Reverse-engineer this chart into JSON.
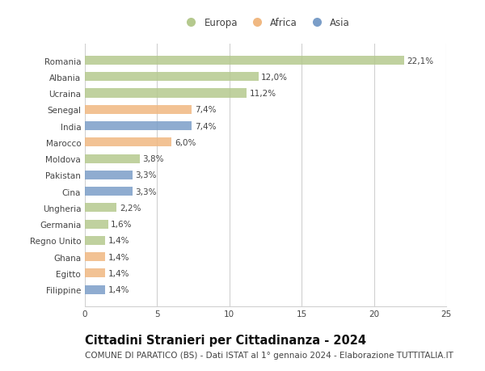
{
  "categories": [
    "Romania",
    "Albania",
    "Ucraina",
    "Senegal",
    "India",
    "Marocco",
    "Moldova",
    "Pakistan",
    "Cina",
    "Ungheria",
    "Germania",
    "Regno Unito",
    "Ghana",
    "Egitto",
    "Filippine"
  ],
  "values": [
    22.1,
    12.0,
    11.2,
    7.4,
    7.4,
    6.0,
    3.8,
    3.3,
    3.3,
    2.2,
    1.6,
    1.4,
    1.4,
    1.4,
    1.4
  ],
  "labels": [
    "22,1%",
    "12,0%",
    "11,2%",
    "7,4%",
    "7,4%",
    "6,0%",
    "3,8%",
    "3,3%",
    "3,3%",
    "2,2%",
    "1,6%",
    "1,4%",
    "1,4%",
    "1,4%",
    "1,4%"
  ],
  "continents": [
    "Europa",
    "Europa",
    "Europa",
    "Africa",
    "Asia",
    "Africa",
    "Europa",
    "Asia",
    "Asia",
    "Europa",
    "Europa",
    "Europa",
    "Africa",
    "Africa",
    "Asia"
  ],
  "colors": {
    "Europa": "#b5c98e",
    "Africa": "#f0b882",
    "Asia": "#7b9ec8"
  },
  "legend_labels": [
    "Europa",
    "Africa",
    "Asia"
  ],
  "xlim": [
    0,
    25
  ],
  "xticks": [
    0,
    5,
    10,
    15,
    20,
    25
  ],
  "title": "Cittadini Stranieri per Cittadinanza - 2024",
  "subtitle": "COMUNE DI PARATICO (BS) - Dati ISTAT al 1° gennaio 2024 - Elaborazione TUTTITALIA.IT",
  "background_color": "#ffffff",
  "grid_color": "#d0d0d0",
  "bar_height": 0.55,
  "title_fontsize": 10.5,
  "subtitle_fontsize": 7.5,
  "label_fontsize": 7.5,
  "tick_fontsize": 7.5,
  "legend_fontsize": 8.5
}
